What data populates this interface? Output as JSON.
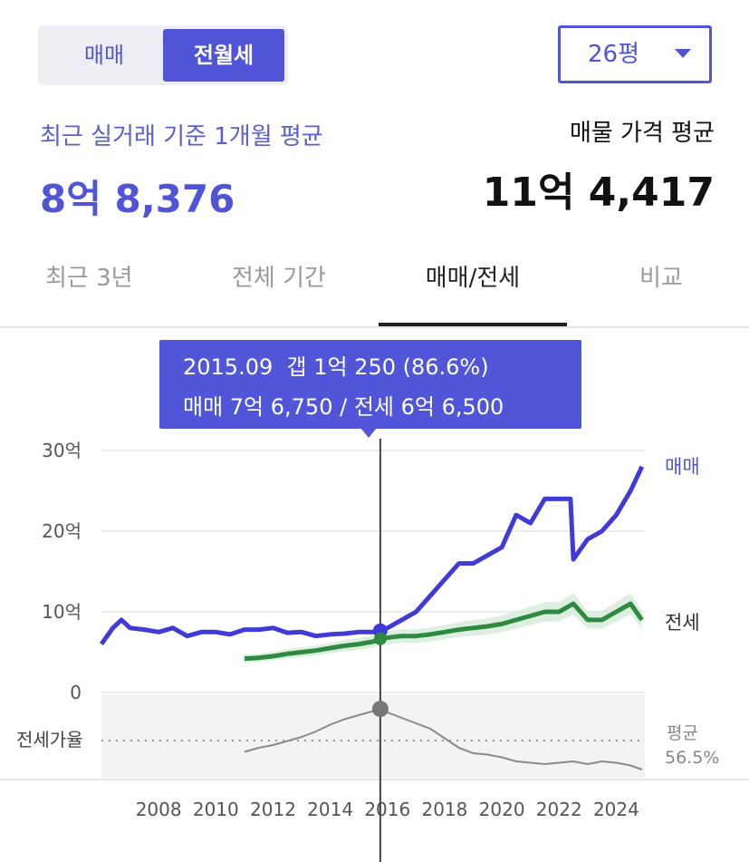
{
  "deal_toggle": {
    "sale_label": "매매",
    "rent_label": "전월세",
    "selected": "전월세"
  },
  "size_select": {
    "value": "26평"
  },
  "summary": {
    "recent_label": "최근 실거래 기준 1개월 평균",
    "recent_value": "8억 8,376",
    "listing_label": "매물 가격 평균",
    "listing_value": "11억 4,417"
  },
  "tabs": [
    {
      "label": "최근 3년"
    },
    {
      "label": "전체 기간"
    },
    {
      "label": "매매/전세",
      "selected": true
    },
    {
      "label": "비교"
    }
  ],
  "tooltip": {
    "line1": "2015.09  갭 1억 250 (86.6%)",
    "line2": "매매 7억 6,750 / 전세 6억 6,500"
  },
  "colors": {
    "sale": "#3f3ad8",
    "jeonse": "#2e8a3e",
    "jeonse_band": "#cfe8d3",
    "ratio": "#8a8a8a",
    "accent": "#4f55d6"
  },
  "chart_data": [
    {
      "type": "line",
      "title": "",
      "y_tick_labels": [
        "30억",
        "20억",
        "10억",
        "0"
      ],
      "y_ticks": [
        30,
        20,
        10,
        0
      ],
      "ylim": [
        0,
        30
      ],
      "xlim": [
        2006.0,
        2025.0
      ],
      "x_tick_labels": [
        "2008",
        "2010",
        "2012",
        "2014",
        "2016",
        "2018",
        "2020",
        "2022",
        "2024"
      ],
      "x_ticks": [
        2008,
        2010,
        2012,
        2014,
        2016,
        2018,
        2020,
        2022,
        2024
      ],
      "unit": "억",
      "grid": true,
      "legend": "right-end labels",
      "series": [
        {
          "name": "매매",
          "x": [
            2006.0,
            2006.4,
            2006.7,
            2007.0,
            2007.5,
            2008.0,
            2008.5,
            2009.0,
            2009.5,
            2010.0,
            2010.5,
            2011.0,
            2011.5,
            2012.0,
            2012.5,
            2013.0,
            2013.5,
            2014.0,
            2014.5,
            2015.0,
            2015.5,
            2015.75,
            2016.0,
            2016.5,
            2017.0,
            2017.5,
            2018.0,
            2018.5,
            2019.0,
            2019.5,
            2020.0,
            2020.5,
            2021.0,
            2021.5,
            2022.0,
            2022.4,
            2022.5,
            2023.0,
            2023.5,
            2024.0,
            2024.5,
            2024.9
          ],
          "values": [
            6.0,
            8.0,
            9.0,
            8.0,
            7.8,
            7.5,
            8.0,
            7.0,
            7.5,
            7.5,
            7.2,
            7.8,
            7.8,
            8.0,
            7.4,
            7.5,
            7.0,
            7.2,
            7.3,
            7.5,
            7.5,
            7.675,
            8.0,
            9.0,
            10.0,
            12.0,
            14.0,
            16.0,
            16.0,
            17.0,
            18.0,
            22.0,
            21.0,
            24.0,
            24.0,
            24.0,
            16.5,
            19.0,
            20.0,
            22.0,
            25.0,
            28.0
          ]
        },
        {
          "name": "전세",
          "x": [
            2011.0,
            2011.5,
            2012.0,
            2012.5,
            2013.0,
            2013.5,
            2014.0,
            2014.5,
            2015.0,
            2015.5,
            2015.75,
            2016.0,
            2016.5,
            2017.0,
            2017.5,
            2018.0,
            2018.5,
            2019.0,
            2019.5,
            2020.0,
            2020.5,
            2021.0,
            2021.5,
            2022.0,
            2022.5,
            2023.0,
            2023.5,
            2024.0,
            2024.5,
            2024.9
          ],
          "values": [
            4.2,
            4.3,
            4.5,
            4.8,
            5.0,
            5.2,
            5.5,
            5.8,
            6.0,
            6.3,
            6.65,
            6.8,
            7.0,
            7.0,
            7.2,
            7.5,
            7.8,
            8.0,
            8.2,
            8.5,
            9.0,
            9.5,
            10.0,
            10.0,
            11.0,
            9.0,
            9.0,
            10.0,
            11.0,
            9.0
          ]
        }
      ]
    },
    {
      "type": "line",
      "title": "전세가율",
      "xlim": [
        2006.0,
        2025.0
      ],
      "unit": "%",
      "average_label": "평균",
      "average_value": "56.5%",
      "average": 56.5,
      "series": [
        {
          "name": "전세가율",
          "x": [
            2011.0,
            2011.5,
            2012.0,
            2012.5,
            2013.0,
            2013.5,
            2014.0,
            2014.5,
            2015.0,
            2015.5,
            2015.75,
            2016.0,
            2016.5,
            2017.0,
            2017.5,
            2018.0,
            2018.5,
            2019.0,
            2019.5,
            2020.0,
            2020.5,
            2021.0,
            2021.5,
            2022.0,
            2022.5,
            2023.0,
            2023.5,
            2024.0,
            2024.5,
            2024.9
          ],
          "values": [
            55.0,
            58.0,
            60.0,
            63.0,
            66.0,
            70.0,
            75.0,
            79.0,
            82.0,
            85.0,
            86.6,
            84.0,
            80.0,
            76.0,
            72.0,
            65.0,
            58.0,
            54.0,
            53.0,
            51.0,
            48.0,
            47.0,
            46.0,
            47.0,
            48.0,
            46.0,
            48.0,
            47.0,
            45.0,
            42.0
          ]
        }
      ]
    }
  ],
  "crosshair": {
    "x": 2015.75,
    "sale": 7.675,
    "jeonse": 6.65,
    "ratio": 86.6
  }
}
